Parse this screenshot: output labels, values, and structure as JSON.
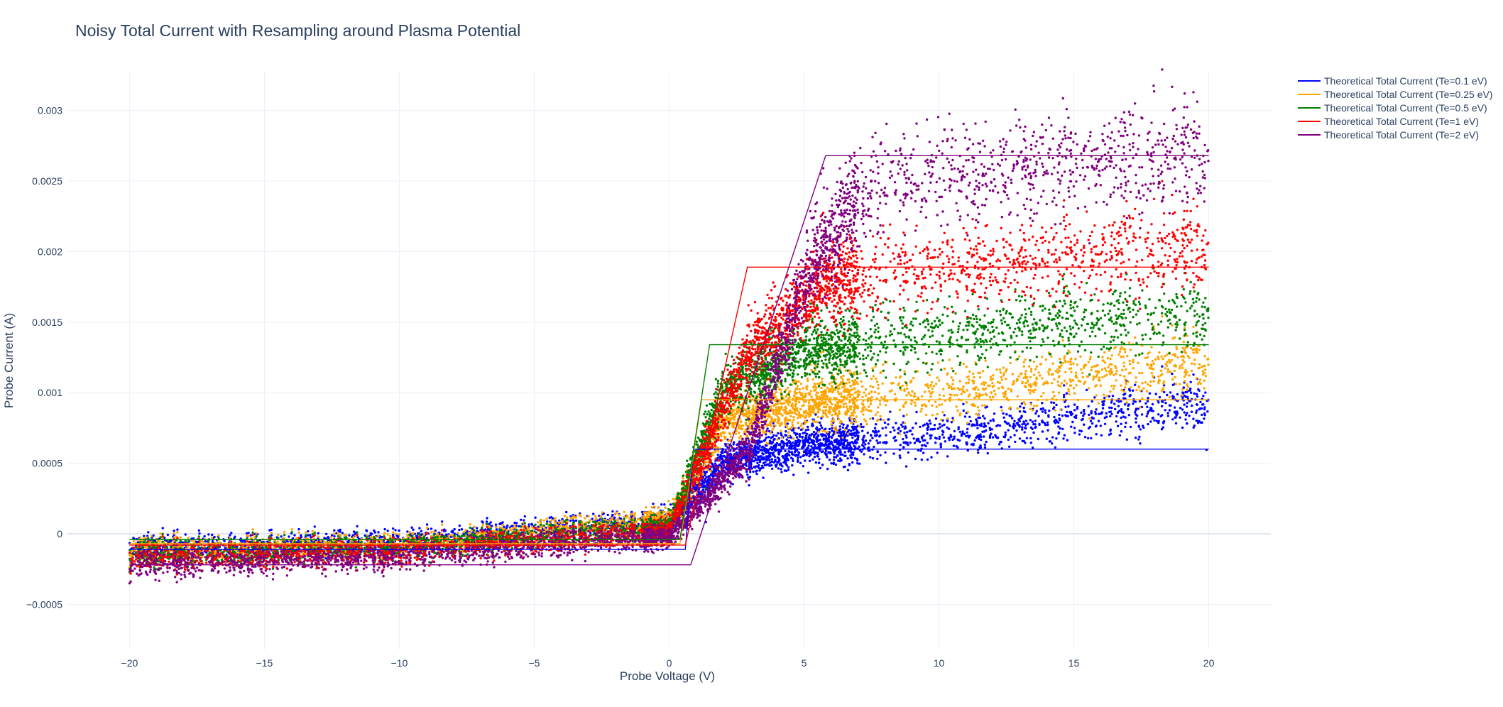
{
  "chart_data": {
    "type": "scatter",
    "title": "Noisy Total Current with Resampling around Plasma Potential",
    "xlabel": "Probe Voltage (V)",
    "ylabel": "Probe Current (A)",
    "xlim": [
      -22.3,
      22.3
    ],
    "ylim": [
      -0.00082,
      0.00328
    ],
    "x_ticks": [
      -20,
      -15,
      -10,
      -5,
      0,
      5,
      10,
      15,
      20
    ],
    "x_tick_labels": [
      "−20",
      "−15",
      "−10",
      "−5",
      "0",
      "5",
      "10",
      "15",
      "20"
    ],
    "y_ticks": [
      -0.0005,
      0,
      0.0005,
      0.001,
      0.0015,
      0.002,
      0.0025,
      0.003
    ],
    "y_tick_labels": [
      "−0.0005",
      "0",
      "0.0005",
      "0.001",
      "0.0015",
      "0.002",
      "0.0025",
      "0.003"
    ],
    "grid": true,
    "legend_position": "top-right",
    "series": [
      {
        "name": "Theoretical Total Current (Te=0.1 eV)",
        "color": "#0000ff",
        "line": {
          "x": [
            -20,
            0.6,
            0.9,
            20
          ],
          "y": [
            -0.00011,
            -0.00011,
            0.0006,
            0.0006
          ]
        },
        "scatter_trend": {
          "x": [
            -20,
            -10,
            0,
            2,
            5,
            10,
            15,
            20
          ],
          "y": [
            -0.0001,
            -5e-05,
            0.0001,
            0.0005,
            0.00063,
            0.0007,
            0.00082,
            0.00093
          ]
        }
      },
      {
        "name": "Theoretical Total Current (Te=0.25 eV)",
        "color": "#ffa500",
        "line": {
          "x": [
            -20,
            0.4,
            1.2,
            20
          ],
          "y": [
            -7e-05,
            -7e-05,
            0.00095,
            0.00095
          ]
        },
        "scatter_trend": {
          "x": [
            -20,
            -10,
            0,
            2,
            5,
            10,
            15,
            20
          ],
          "y": [
            -0.00012,
            -8e-05,
            0.0001,
            0.0008,
            0.00093,
            0.001,
            0.00112,
            0.00123
          ]
        }
      },
      {
        "name": "Theoretical Total Current (Te=0.5 eV)",
        "color": "#008000",
        "line": {
          "x": [
            -20,
            0.4,
            1.5,
            20
          ],
          "y": [
            -4e-05,
            -4e-05,
            0.00134,
            0.00134
          ]
        },
        "scatter_trend": {
          "x": [
            -20,
            -10,
            0,
            2,
            5,
            10,
            15,
            20
          ],
          "y": [
            -0.00015,
            -0.0001,
            5e-05,
            0.001,
            0.0013,
            0.0014,
            0.0015,
            0.00157
          ]
        }
      },
      {
        "name": "Theoretical Total Current (Te=1 eV)",
        "color": "#ff0000",
        "line": {
          "x": [
            -20,
            0.6,
            2.9,
            20
          ],
          "y": [
            -8e-05,
            -8e-05,
            0.00189,
            0.00189
          ]
        },
        "scatter_trend": {
          "x": [
            -20,
            -10,
            0,
            3,
            6,
            10,
            15,
            20
          ],
          "y": [
            -0.00017,
            -0.00012,
            2e-05,
            0.0013,
            0.0018,
            0.00188,
            0.00195,
            0.00203
          ]
        }
      },
      {
        "name": "Theoretical Total Current (Te=2 eV)",
        "color": "#800080",
        "line": {
          "x": [
            -20,
            0.8,
            5.8,
            20
          ],
          "y": [
            -0.00022,
            -0.00022,
            0.00268,
            0.00268
          ]
        },
        "scatter_trend": {
          "x": [
            -20,
            -10,
            0,
            3,
            5,
            7,
            10,
            15,
            20
          ],
          "y": [
            -0.00022,
            -0.00016,
            -2e-05,
            0.0006,
            0.0018,
            0.0024,
            0.00255,
            0.00262,
            0.0027
          ]
        }
      }
    ]
  }
}
